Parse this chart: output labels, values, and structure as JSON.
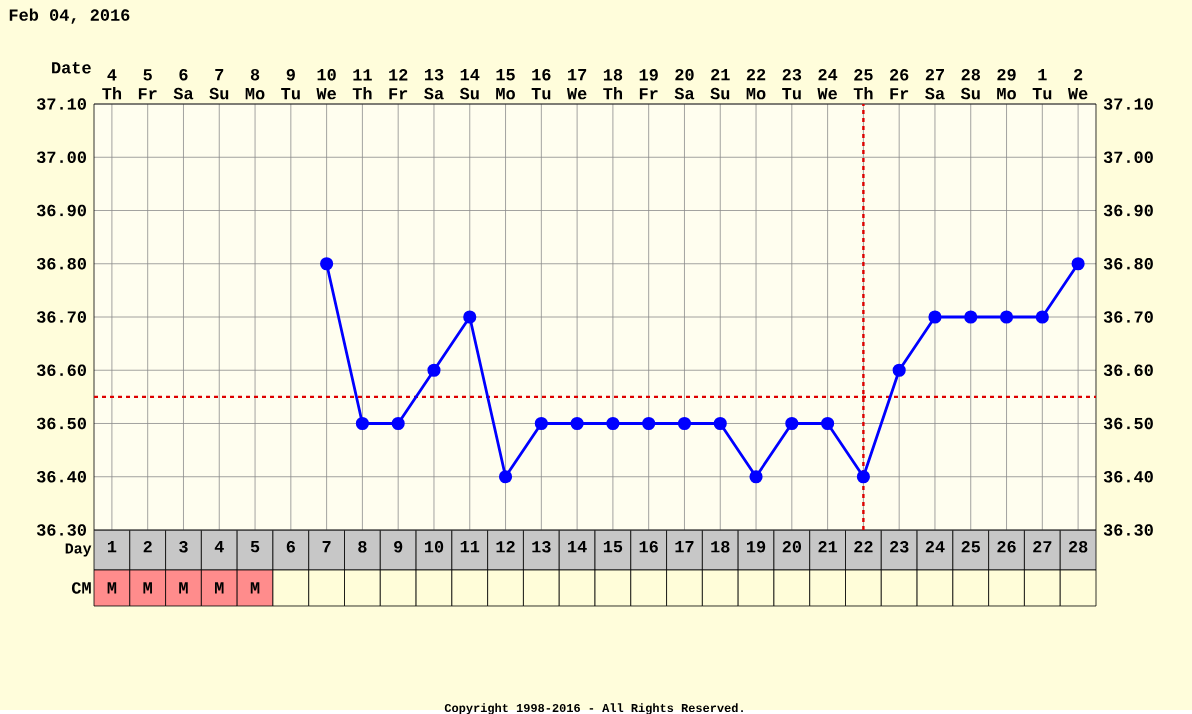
{
  "chart_data": {
    "type": "line",
    "title": "Feb 04, 2016",
    "xlabel": "Day",
    "x2label": "Date",
    "xlim": [
      0.5,
      28.5
    ],
    "xticks": [
      1,
      2,
      3,
      4,
      5,
      6,
      7,
      8,
      9,
      10,
      11,
      12,
      13,
      14,
      15,
      16,
      17,
      18,
      19,
      20,
      21,
      22,
      23,
      24,
      25,
      26,
      27,
      28
    ],
    "ylim": [
      36.3,
      37.1
    ],
    "yticks": [
      {
        "value": 36.3,
        "label": "36.30"
      },
      {
        "value": 36.4,
        "label": "36.40"
      },
      {
        "value": 36.5,
        "label": "36.50"
      },
      {
        "value": 36.6,
        "label": "36.60"
      },
      {
        "value": 36.7,
        "label": "36.70"
      },
      {
        "value": 36.8,
        "label": "36.80"
      },
      {
        "value": 36.9,
        "label": "36.90"
      },
      {
        "value": 37.0,
        "label": "37.00"
      },
      {
        "value": 37.1,
        "label": "37.10"
      }
    ],
    "y2lim": [
      36.3,
      37.1
    ],
    "y2ticks": [
      {
        "value": 36.3,
        "label": "36.30"
      },
      {
        "value": 36.4,
        "label": "36.40"
      },
      {
        "value": 36.5,
        "label": "36.50"
      },
      {
        "value": 36.6,
        "label": "36.60"
      },
      {
        "value": 36.7,
        "label": "36.70"
      },
      {
        "value": 36.8,
        "label": "36.80"
      },
      {
        "value": 36.9,
        "label": "36.90"
      },
      {
        "value": 37.0,
        "label": "37.00"
      },
      {
        "value": 37.1,
        "label": "37.10"
      }
    ],
    "series": [
      {
        "color": "#0000ff",
        "x": [
          7,
          8,
          9,
          10,
          11,
          12,
          13,
          14,
          15,
          16,
          17,
          18,
          19,
          20,
          21,
          22,
          23,
          24,
          25,
          26,
          27,
          28
        ],
        "values": [
          36.8,
          36.5,
          36.5,
          36.6,
          36.7,
          36.4,
          36.5,
          36.5,
          36.5,
          36.5,
          36.5,
          36.5,
          36.4,
          36.5,
          36.5,
          36.4,
          36.6,
          36.7,
          36.7,
          36.7,
          36.7,
          36.8
        ]
      }
    ],
    "marker": "circle",
    "line_style": "solid",
    "grid": true,
    "ref_lines": [
      {
        "axis": "y",
        "value": 36.55,
        "color": "#dd0000",
        "line_style": "dotted"
      },
      {
        "axis": "x",
        "value": 22,
        "color": "#dd0000",
        "line_style": "dotted"
      }
    ],
    "annotations": [
      "4 Th",
      "5 Fr",
      "6 Sa",
      "7 Su",
      "8 Mo",
      "9 Tu",
      "10 We",
      "11 Th",
      "12 Fr",
      "13 Sa",
      "14 Su",
      "15 Mo",
      "16 Tu",
      "17 We",
      "18 Th",
      "19 Fr",
      "20 Sa",
      "21 Su",
      "22 Mo",
      "23 Tu",
      "24 We",
      "25 Th",
      "26 Fr",
      "27 Sa",
      "28 Su",
      "29 Mo",
      "1 Tu",
      "2 We",
      "CM",
      "M",
      "M",
      "M",
      "M",
      "M",
      "Copyright 1998-2016 - All Rights Reserved."
    ]
  }
}
